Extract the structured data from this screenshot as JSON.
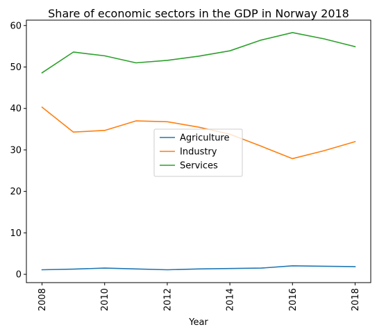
{
  "chart_data": {
    "type": "line",
    "title": "Share of economic sectors in the GDP in Norway 2018",
    "xlabel": "Year",
    "ylabel": "",
    "x": [
      2008,
      2009,
      2010,
      2011,
      2012,
      2013,
      2014,
      2015,
      2016,
      2017,
      2018
    ],
    "xticks": [
      2008,
      2010,
      2012,
      2014,
      2016,
      2018
    ],
    "yticks": [
      0,
      10,
      20,
      30,
      40,
      50,
      60
    ],
    "xlim": [
      2007.5,
      2018.5
    ],
    "ylim": [
      -2.0,
      61.3
    ],
    "grid": false,
    "legend_position": "center",
    "series": [
      {
        "name": "Agriculture",
        "color": "#1f77b4",
        "values": [
          1.1,
          1.25,
          1.5,
          1.3,
          1.1,
          1.3,
          1.4,
          1.5,
          2.05,
          1.95,
          1.85
        ]
      },
      {
        "name": "Industry",
        "color": "#ff7f0e",
        "values": [
          40.3,
          34.3,
          34.7,
          37.0,
          36.8,
          35.5,
          33.8,
          30.9,
          27.9,
          29.8,
          32.0
        ]
      },
      {
        "name": "Services",
        "color": "#2ca02c",
        "values": [
          48.6,
          53.6,
          52.7,
          51.0,
          51.6,
          52.6,
          53.9,
          56.5,
          58.3,
          56.8,
          54.9
        ]
      }
    ]
  }
}
